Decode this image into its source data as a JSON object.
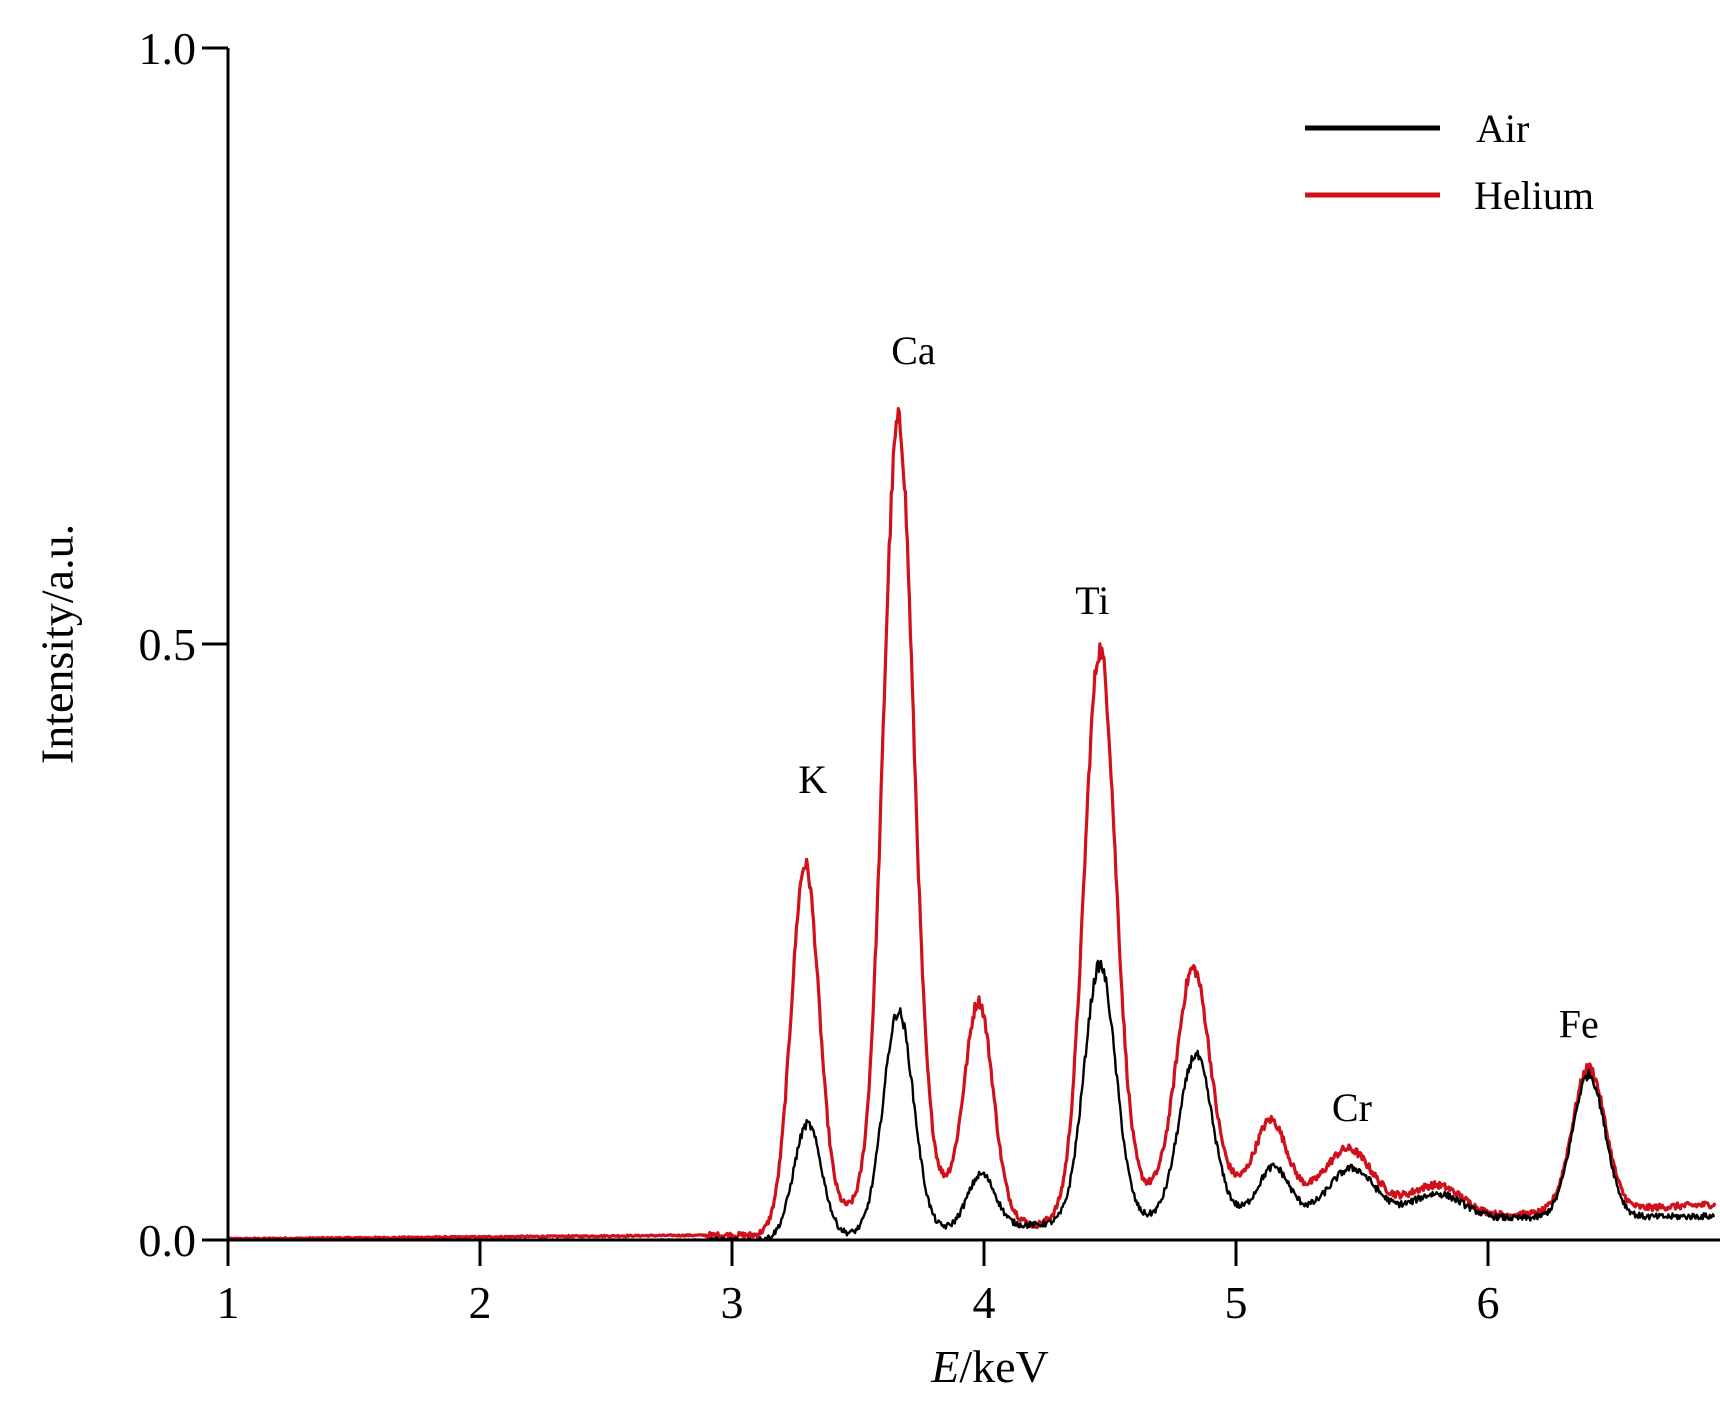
{
  "chart_data": {
    "type": "line",
    "xlabel_italic": "E",
    "xlabel_rest": "/keV",
    "ylabel": "Intensity/a.u.",
    "xlim": [
      1,
      6.9
    ],
    "ylim": [
      0,
      1.0
    ],
    "x_ticks": [
      "1",
      "2",
      "3",
      "4",
      "5",
      "6"
    ],
    "y_ticks": [
      "0.0",
      "0.5",
      "1.0"
    ],
    "legend_position": "top-right",
    "grid": false,
    "series": [
      {
        "name": "Air",
        "color": "#000000",
        "peaks": [
          {
            "x": 3.3,
            "y": 0.095,
            "w": 0.055
          },
          {
            "x": 3.66,
            "y": 0.185,
            "w": 0.06
          },
          {
            "x": 3.99,
            "y": 0.045,
            "w": 0.055
          },
          {
            "x": 4.46,
            "y": 0.215,
            "w": 0.062
          },
          {
            "x": 4.84,
            "y": 0.135,
            "w": 0.065
          },
          {
            "x": 5.15,
            "y": 0.04,
            "w": 0.06
          },
          {
            "x": 5.46,
            "y": 0.04,
            "w": 0.09
          },
          {
            "x": 5.8,
            "y": 0.02,
            "w": 0.1
          },
          {
            "x": 6.4,
            "y": 0.12,
            "w": 0.065
          }
        ],
        "baseline": [
          [
            1.0,
            0.0
          ],
          [
            3.1,
            0.0
          ],
          [
            5.0,
            0.022
          ],
          [
            6.0,
            0.018
          ],
          [
            6.9,
            0.02
          ]
        ]
      },
      {
        "name": "Helium",
        "color": "#d0111c",
        "peaks": [
          {
            "x": 3.29,
            "y": 0.3,
            "w": 0.055
          },
          {
            "x": 3.66,
            "y": 0.65,
            "w": 0.06
          },
          {
            "x": 3.98,
            "y": 0.17,
            "w": 0.055
          },
          {
            "x": 4.46,
            "y": 0.465,
            "w": 0.062
          },
          {
            "x": 4.83,
            "y": 0.185,
            "w": 0.065
          },
          {
            "x": 5.14,
            "y": 0.06,
            "w": 0.06
          },
          {
            "x": 5.45,
            "y": 0.045,
            "w": 0.09
          },
          {
            "x": 5.8,
            "y": 0.022,
            "w": 0.1
          },
          {
            "x": 6.4,
            "y": 0.12,
            "w": 0.065
          }
        ],
        "baseline": [
          [
            1.0,
            0.001
          ],
          [
            2.9,
            0.004
          ],
          [
            3.1,
            0.004
          ],
          [
            3.8,
            0.045
          ],
          [
            4.2,
            0.012
          ],
          [
            4.6,
            0.04
          ],
          [
            5.0,
            0.045
          ],
          [
            5.5,
            0.03
          ],
          [
            6.0,
            0.02
          ],
          [
            6.9,
            0.03
          ]
        ]
      }
    ],
    "annotations": [
      {
        "text": "K",
        "x": 3.32,
        "y": 0.375
      },
      {
        "text": "Ca",
        "x": 3.72,
        "y": 0.735
      },
      {
        "text": "Ti",
        "x": 4.43,
        "y": 0.525
      },
      {
        "text": "Cr",
        "x": 5.46,
        "y": 0.1
      },
      {
        "text": "Fe",
        "x": 6.36,
        "y": 0.17
      }
    ]
  }
}
